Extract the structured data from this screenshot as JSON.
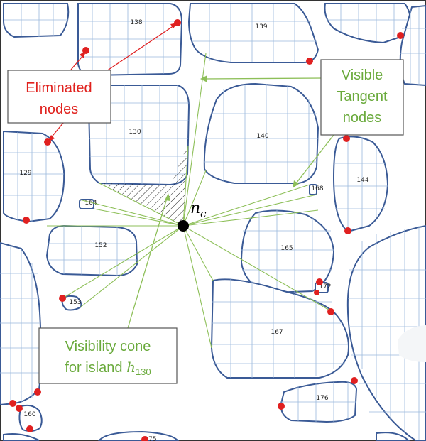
{
  "islands": [
    {
      "id": "138",
      "label": "138"
    },
    {
      "id": "139",
      "label": "139"
    },
    {
      "id": "130",
      "label": "130"
    },
    {
      "id": "140",
      "label": "140"
    },
    {
      "id": "129",
      "label": "129"
    },
    {
      "id": "144",
      "label": "144"
    },
    {
      "id": "164",
      "label": "164"
    },
    {
      "id": "168",
      "label": "168"
    },
    {
      "id": "152",
      "label": "152"
    },
    {
      "id": "165",
      "label": "165"
    },
    {
      "id": "172",
      "label": "172"
    },
    {
      "id": "153",
      "label": "153"
    },
    {
      "id": "167",
      "label": "167"
    },
    {
      "id": "176",
      "label": "176"
    },
    {
      "id": "160",
      "label": "160"
    },
    {
      "id": "175",
      "label": "175"
    }
  ],
  "center_node": {
    "symbol": "n",
    "subscript": "c"
  },
  "labels": {
    "eliminated": [
      "Eliminated",
      "nodes"
    ],
    "tangent": [
      "Visible",
      "Tangent",
      "nodes"
    ],
    "cone_line1": "Visibility cone",
    "cone_line2_prefix": "for island ",
    "cone_symbol": "h",
    "cone_subscript": "130"
  },
  "colors": {
    "island_outline": "#3a5a96",
    "grid": "#9ab8dc",
    "eliminated": "#e02020",
    "visibility": "#8dbf58"
  }
}
